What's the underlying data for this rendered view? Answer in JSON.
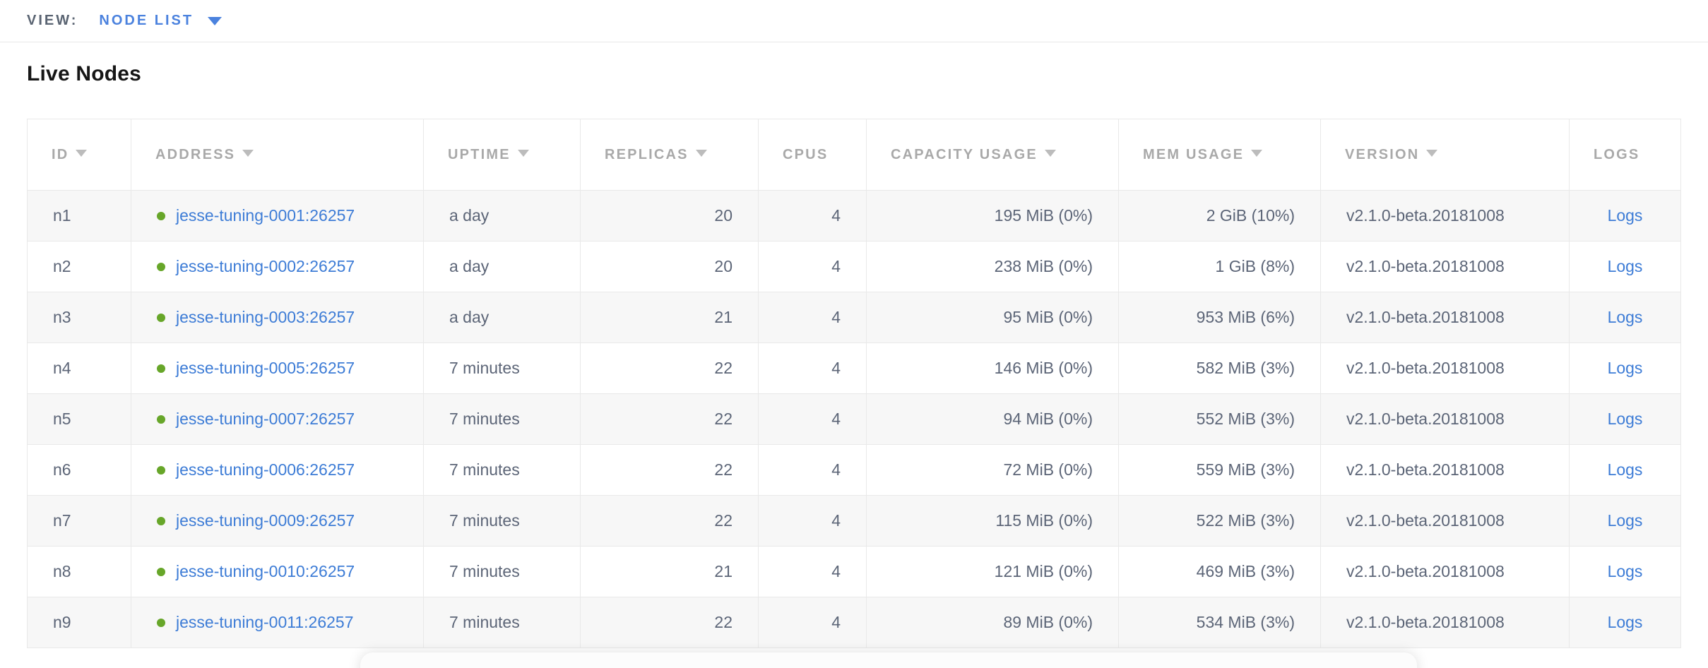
{
  "view_bar": {
    "label": "VIEW:",
    "selected": "NODE LIST"
  },
  "page_title": "Live Nodes",
  "colors": {
    "accent_blue": "#4b82de",
    "link_blue": "#3d7cd6",
    "live_green": "#67a629",
    "header_gray": "#a9a9a9",
    "body_slate": "#5c6577",
    "row_alt_bg": "#f7f7f7",
    "border": "#e9e9e9"
  },
  "table": {
    "columns": [
      {
        "key": "id",
        "label": "ID",
        "sortable": true,
        "align": "left"
      },
      {
        "key": "address",
        "label": "ADDRESS",
        "sortable": true,
        "align": "left"
      },
      {
        "key": "uptime",
        "label": "UPTIME",
        "sortable": true,
        "align": "left"
      },
      {
        "key": "replicas",
        "label": "REPLICAS",
        "sortable": true,
        "align": "right"
      },
      {
        "key": "cpus",
        "label": "CPUS",
        "sortable": false,
        "align": "right"
      },
      {
        "key": "capacity_usage",
        "label": "CAPACITY USAGE",
        "sortable": true,
        "align": "right"
      },
      {
        "key": "mem_usage",
        "label": "MEM USAGE",
        "sortable": true,
        "align": "right"
      },
      {
        "key": "version",
        "label": "VERSION",
        "sortable": true,
        "align": "left"
      },
      {
        "key": "logs",
        "label": "LOGS",
        "sortable": false,
        "align": "center"
      }
    ],
    "rows": [
      {
        "id": "n1",
        "status": "live",
        "address": "jesse-tuning-0001:26257",
        "uptime": "a day",
        "replicas": "20",
        "cpus": "4",
        "capacity_usage": "195 MiB (0%)",
        "mem_usage": "2 GiB (10%)",
        "version": "v2.1.0-beta.20181008",
        "logs": "Logs"
      },
      {
        "id": "n2",
        "status": "live",
        "address": "jesse-tuning-0002:26257",
        "uptime": "a day",
        "replicas": "20",
        "cpus": "4",
        "capacity_usage": "238 MiB (0%)",
        "mem_usage": "1 GiB (8%)",
        "version": "v2.1.0-beta.20181008",
        "logs": "Logs"
      },
      {
        "id": "n3",
        "status": "live",
        "address": "jesse-tuning-0003:26257",
        "uptime": "a day",
        "replicas": "21",
        "cpus": "4",
        "capacity_usage": "95 MiB (0%)",
        "mem_usage": "953 MiB (6%)",
        "version": "v2.1.0-beta.20181008",
        "logs": "Logs"
      },
      {
        "id": "n4",
        "status": "live",
        "address": "jesse-tuning-0005:26257",
        "uptime": "7 minutes",
        "replicas": "22",
        "cpus": "4",
        "capacity_usage": "146 MiB (0%)",
        "mem_usage": "582 MiB (3%)",
        "version": "v2.1.0-beta.20181008",
        "logs": "Logs"
      },
      {
        "id": "n5",
        "status": "live",
        "address": "jesse-tuning-0007:26257",
        "uptime": "7 minutes",
        "replicas": "22",
        "cpus": "4",
        "capacity_usage": "94 MiB (0%)",
        "mem_usage": "552 MiB (3%)",
        "version": "v2.1.0-beta.20181008",
        "logs": "Logs"
      },
      {
        "id": "n6",
        "status": "live",
        "address": "jesse-tuning-0006:26257",
        "uptime": "7 minutes",
        "replicas": "22",
        "cpus": "4",
        "capacity_usage": "72 MiB (0%)",
        "mem_usage": "559 MiB (3%)",
        "version": "v2.1.0-beta.20181008",
        "logs": "Logs"
      },
      {
        "id": "n7",
        "status": "live",
        "address": "jesse-tuning-0009:26257",
        "uptime": "7 minutes",
        "replicas": "22",
        "cpus": "4",
        "capacity_usage": "115 MiB (0%)",
        "mem_usage": "522 MiB (3%)",
        "version": "v2.1.0-beta.20181008",
        "logs": "Logs"
      },
      {
        "id": "n8",
        "status": "live",
        "address": "jesse-tuning-0010:26257",
        "uptime": "7 minutes",
        "replicas": "21",
        "cpus": "4",
        "capacity_usage": "121 MiB (0%)",
        "mem_usage": "469 MiB (3%)",
        "version": "v2.1.0-beta.20181008",
        "logs": "Logs"
      },
      {
        "id": "n9",
        "status": "live",
        "address": "jesse-tuning-0011:26257",
        "uptime": "7 minutes",
        "replicas": "22",
        "cpus": "4",
        "capacity_usage": "89 MiB (0%)",
        "mem_usage": "534 MiB (3%)",
        "version": "v2.1.0-beta.20181008",
        "logs": "Logs"
      }
    ]
  }
}
